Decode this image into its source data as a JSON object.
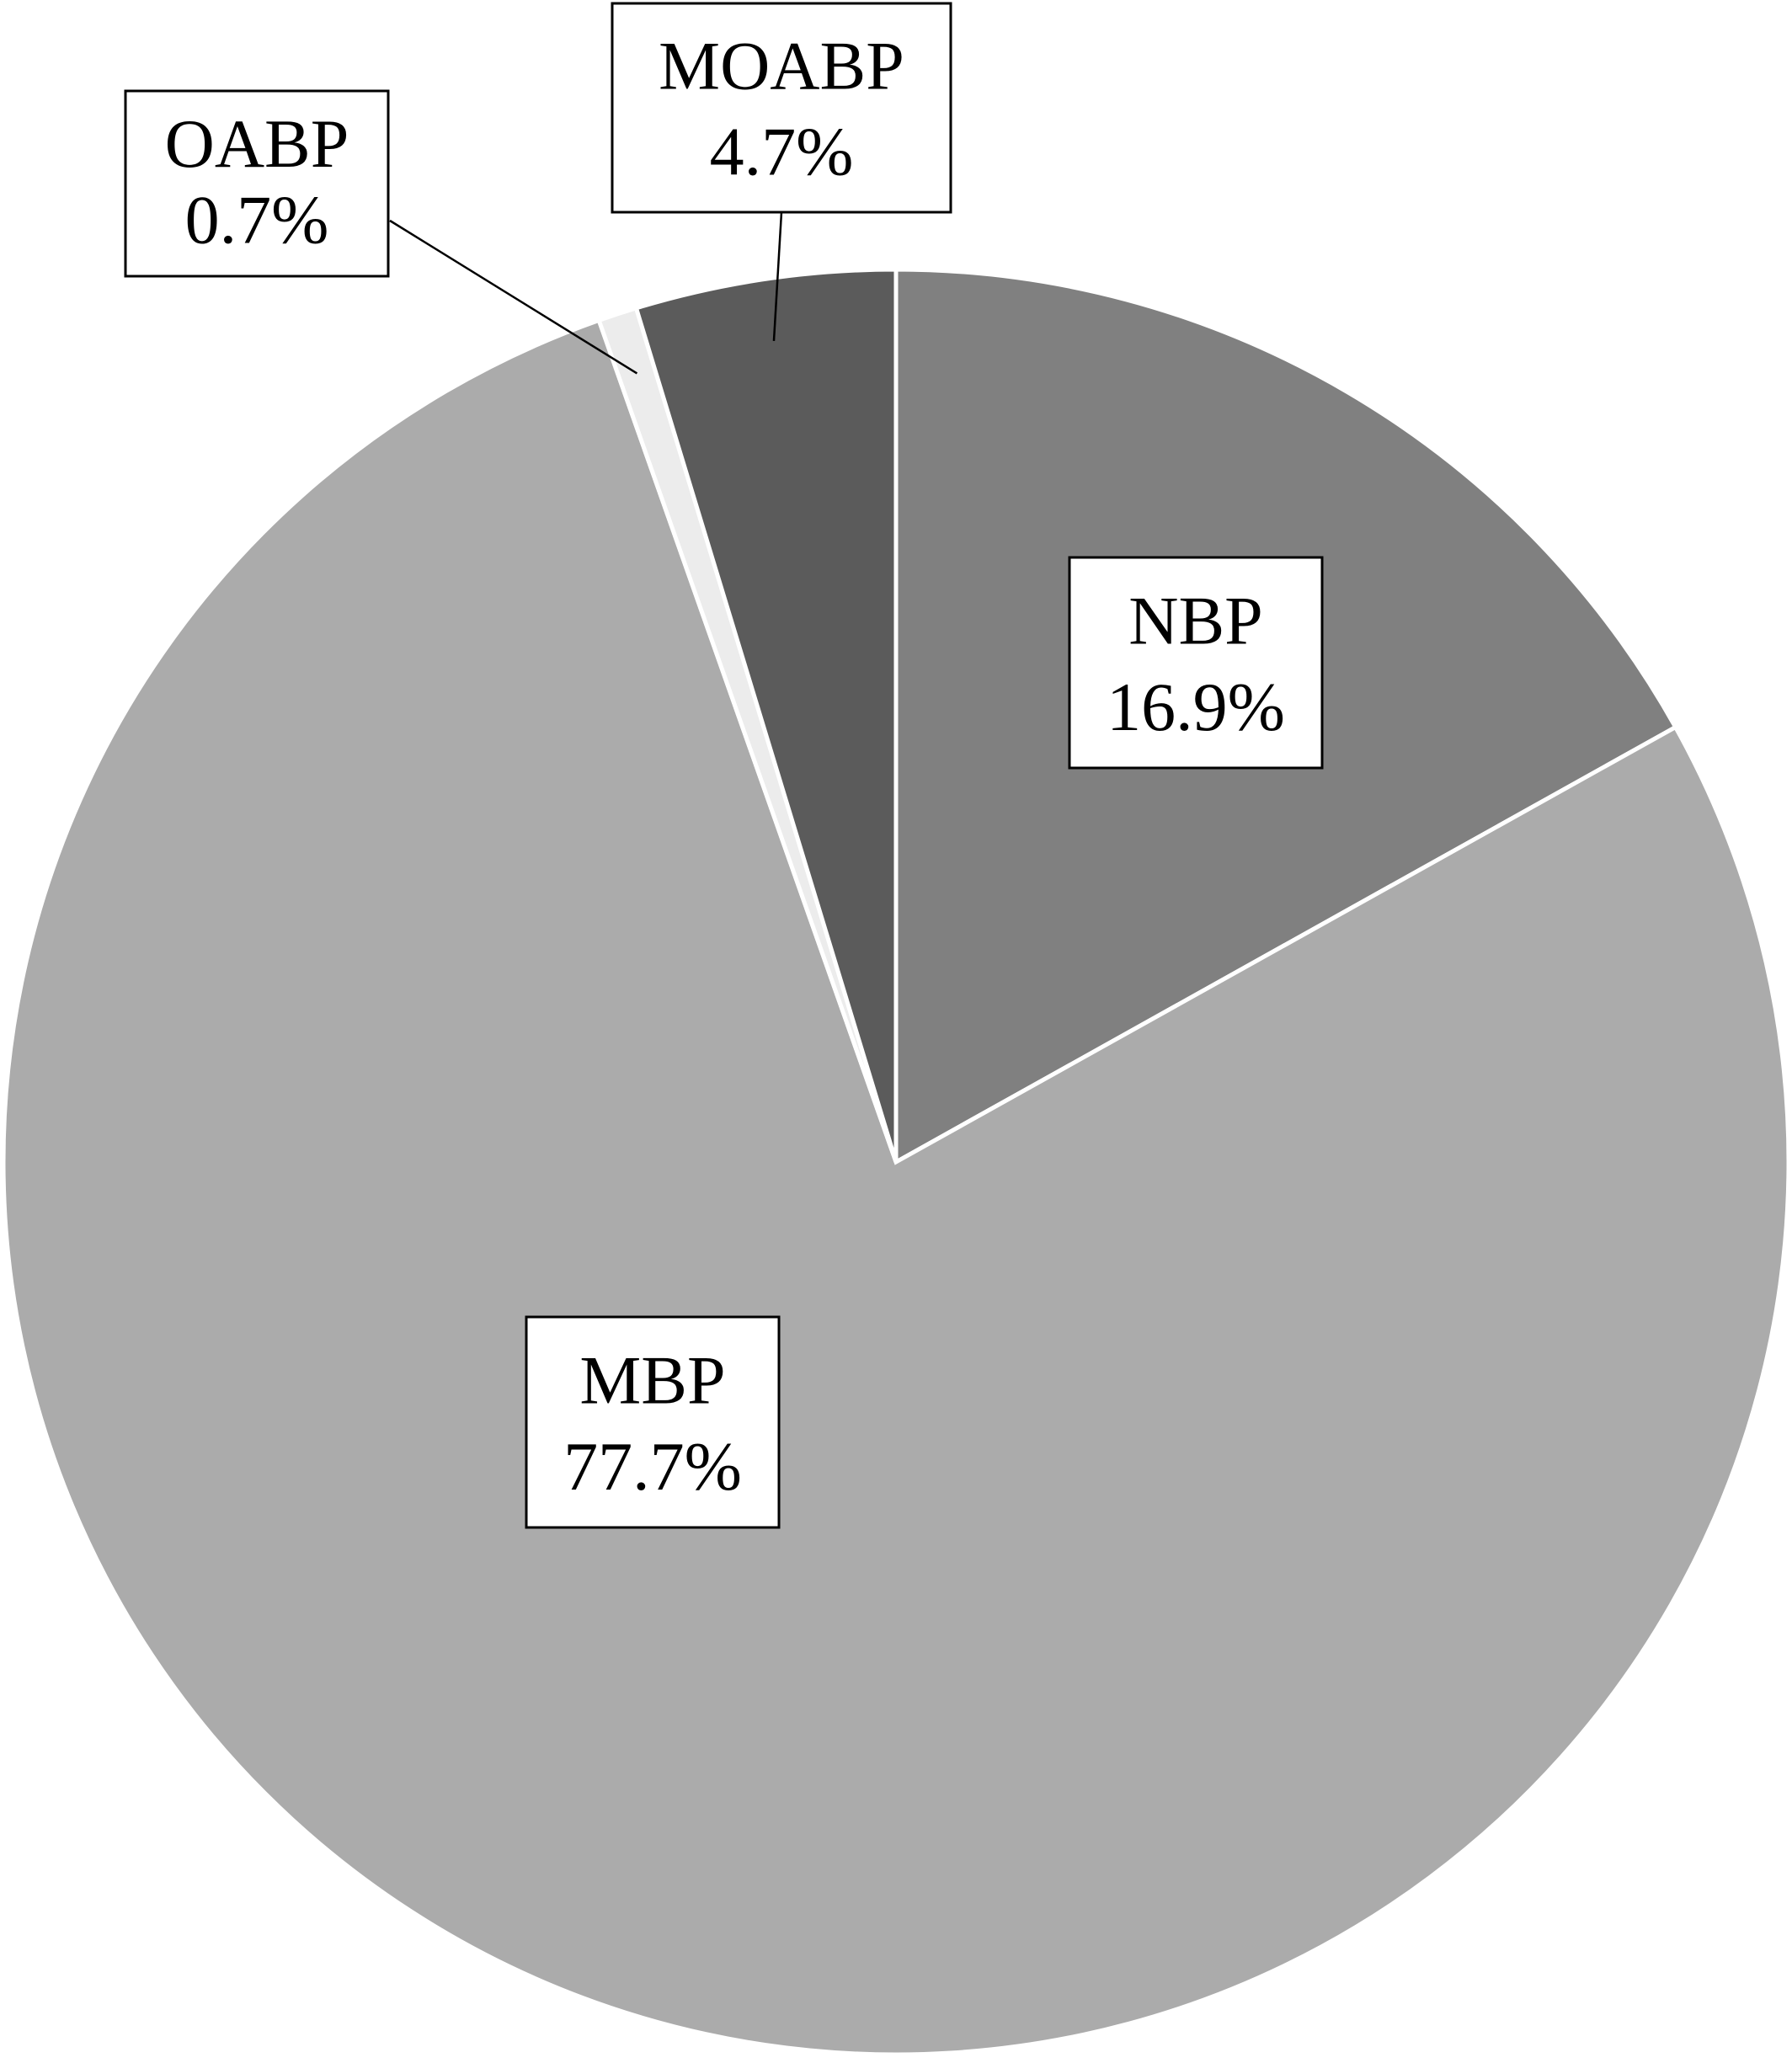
{
  "chart_data": {
    "type": "pie",
    "start_angle_deg": 0,
    "direction": "clockwise",
    "title": "",
    "slices": [
      {
        "label": "NBP",
        "value": 16.9,
        "value_label": "16.9%",
        "color": "#808080"
      },
      {
        "label": "MBP",
        "value": 77.7,
        "value_label": "77.7%",
        "color": "#ababab"
      },
      {
        "label": "OABP",
        "value": 0.7,
        "value_label": "0.7%",
        "color": "#ececec"
      },
      {
        "label": "MOABP",
        "value": 4.7,
        "value_label": "4.7%",
        "color": "#5b5b5b"
      }
    ],
    "data_labels": "boxed category name with percentage",
    "legend": "none"
  }
}
